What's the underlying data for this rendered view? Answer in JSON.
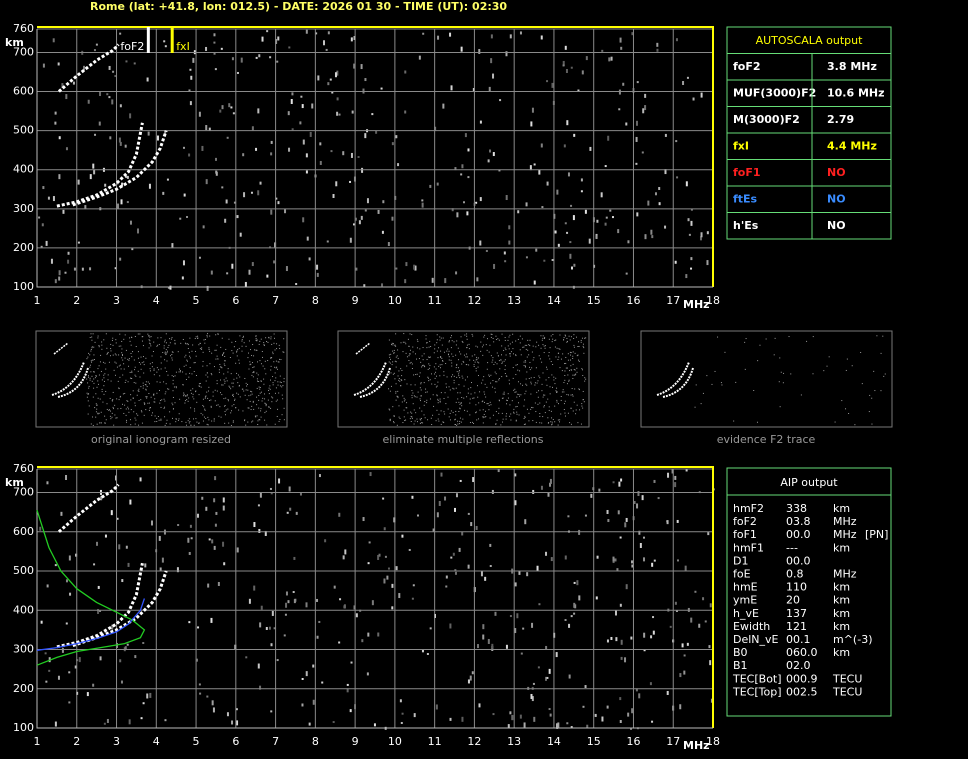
{
  "header": "Rome (lat: +41.8, lon: 012.5) - DATE: 2026 01 30 - TIME (UT): 02:30",
  "chart_data": [
    {
      "type": "scatter",
      "xlabel": "MHz",
      "ylabel": "km",
      "xlim": [
        1,
        18
      ],
      "ylim": [
        100,
        760
      ],
      "xticks": [
        1,
        2,
        3,
        4,
        5,
        6,
        7,
        8,
        9,
        10,
        11,
        12,
        13,
        14,
        15,
        16,
        17,
        18
      ],
      "yticks": [
        100,
        200,
        300,
        400,
        500,
        600,
        700,
        760
      ],
      "grid": true,
      "markers": [
        {
          "label": "foF2",
          "x": 3.8,
          "color": "#ffffff"
        },
        {
          "label": "fxI",
          "x": 4.4,
          "color": "#ffff00"
        }
      ],
      "series": [
        {
          "color": "#ffffff",
          "dotted": true,
          "x": [
            1.5,
            2.0,
            2.5,
            3.0,
            3.3,
            3.5,
            3.65
          ],
          "values": [
            307,
            318,
            335,
            365,
            395,
            440,
            520
          ]
        },
        {
          "color": "#ffffff",
          "dotted": true,
          "x": [
            1.9,
            2.5,
            3.0,
            3.5,
            3.9,
            4.1,
            4.25
          ],
          "values": [
            310,
            330,
            350,
            380,
            420,
            455,
            500
          ]
        },
        {
          "color": "#ffffff",
          "dotted": true,
          "x": [
            1.55,
            2.0,
            2.5,
            2.9,
            3.05
          ],
          "values": [
            600,
            640,
            680,
            705,
            720
          ]
        }
      ]
    },
    {
      "type": "scatter",
      "xlabel": "MHz",
      "ylabel": "km",
      "xlim": [
        1,
        18
      ],
      "ylim": [
        100,
        760
      ],
      "xticks": [
        1,
        2,
        3,
        4,
        5,
        6,
        7,
        8,
        9,
        10,
        11,
        12,
        13,
        14,
        15,
        16,
        17,
        18
      ],
      "yticks": [
        100,
        200,
        300,
        400,
        500,
        600,
        700,
        760
      ],
      "grid": true,
      "series": [
        {
          "color": "#ffffff",
          "dotted": true,
          "x": [
            1.5,
            2.0,
            2.5,
            3.0,
            3.3,
            3.5,
            3.65
          ],
          "values": [
            307,
            318,
            335,
            365,
            395,
            440,
            520
          ]
        },
        {
          "color": "#ffffff",
          "dotted": true,
          "x": [
            1.9,
            2.5,
            3.0,
            3.5,
            3.9,
            4.1,
            4.25
          ],
          "values": [
            310,
            330,
            350,
            380,
            420,
            455,
            500
          ]
        },
        {
          "color": "#ffffff",
          "dotted": true,
          "x": [
            1.55,
            2.0,
            2.5,
            2.9,
            3.05
          ],
          "values": [
            600,
            640,
            680,
            705,
            720
          ]
        },
        {
          "color": "#22cc22",
          "dotted": false,
          "x": [
            1.0,
            1.3,
            1.6,
            2.0,
            2.5,
            3.0,
            3.4,
            3.7,
            3.6,
            3.2,
            2.6,
            2.0,
            1.5,
            1.0
          ],
          "values": [
            655,
            560,
            500,
            455,
            420,
            395,
            375,
            350,
            330,
            315,
            305,
            295,
            280,
            260
          ]
        },
        {
          "color": "#3355ff",
          "dotted": false,
          "x": [
            1.0,
            1.5,
            2.0,
            2.5,
            3.0,
            3.3,
            3.6,
            3.7
          ],
          "values": [
            298,
            305,
            315,
            328,
            345,
            365,
            400,
            430
          ]
        }
      ]
    }
  ],
  "autoscala": {
    "title": "AUTOSCALA output",
    "rows": [
      {
        "label": "foF2",
        "value": "3.8 MHz",
        "color": "#ffffff"
      },
      {
        "label": "MUF(3000)F2",
        "value": "10.6 MHz",
        "color": "#ffffff"
      },
      {
        "label": "M(3000)F2",
        "value": "2.79",
        "color": "#ffffff"
      },
      {
        "label": "fxI",
        "value": "4.4 MHz",
        "color": "#ffff00"
      },
      {
        "label": "foF1",
        "value": "NO",
        "color": "#ff2020"
      },
      {
        "label": "ftEs",
        "value": "NO",
        "color": "#3a8cff"
      },
      {
        "label": "h'Es",
        "value": "NO",
        "color": "#ffffff"
      }
    ]
  },
  "thumbnails": [
    "original ionogram resized",
    "eliminate multiple reflections",
    "evidence F2 trace"
  ],
  "aip": {
    "title": "AIP output",
    "rows": [
      [
        "hmF2",
        "338",
        "km"
      ],
      [
        "foF2",
        "03.8",
        "MHz"
      ],
      [
        "foF1",
        "00.0",
        "MHz",
        "[PN]"
      ],
      [
        "hmF1",
        "---",
        "km"
      ],
      [
        "D1",
        "00.0"
      ],
      [
        "foE",
        "0.8",
        "MHz"
      ],
      [
        "hmE",
        "110",
        "km"
      ],
      [
        "ymE",
        "20",
        "km"
      ],
      [
        "h_vE",
        "137",
        "km"
      ],
      [
        "Ewidth",
        "121",
        "km"
      ],
      [
        "DelN_vE",
        "00.1",
        "m^(-3)"
      ],
      [
        "B0",
        "060.0",
        "km"
      ],
      [
        "B1",
        "02.0"
      ],
      [
        "TEC[Bot]",
        "000.9",
        "TECU"
      ],
      [
        "TEC[Top]",
        "002.5",
        "TECU"
      ]
    ]
  }
}
